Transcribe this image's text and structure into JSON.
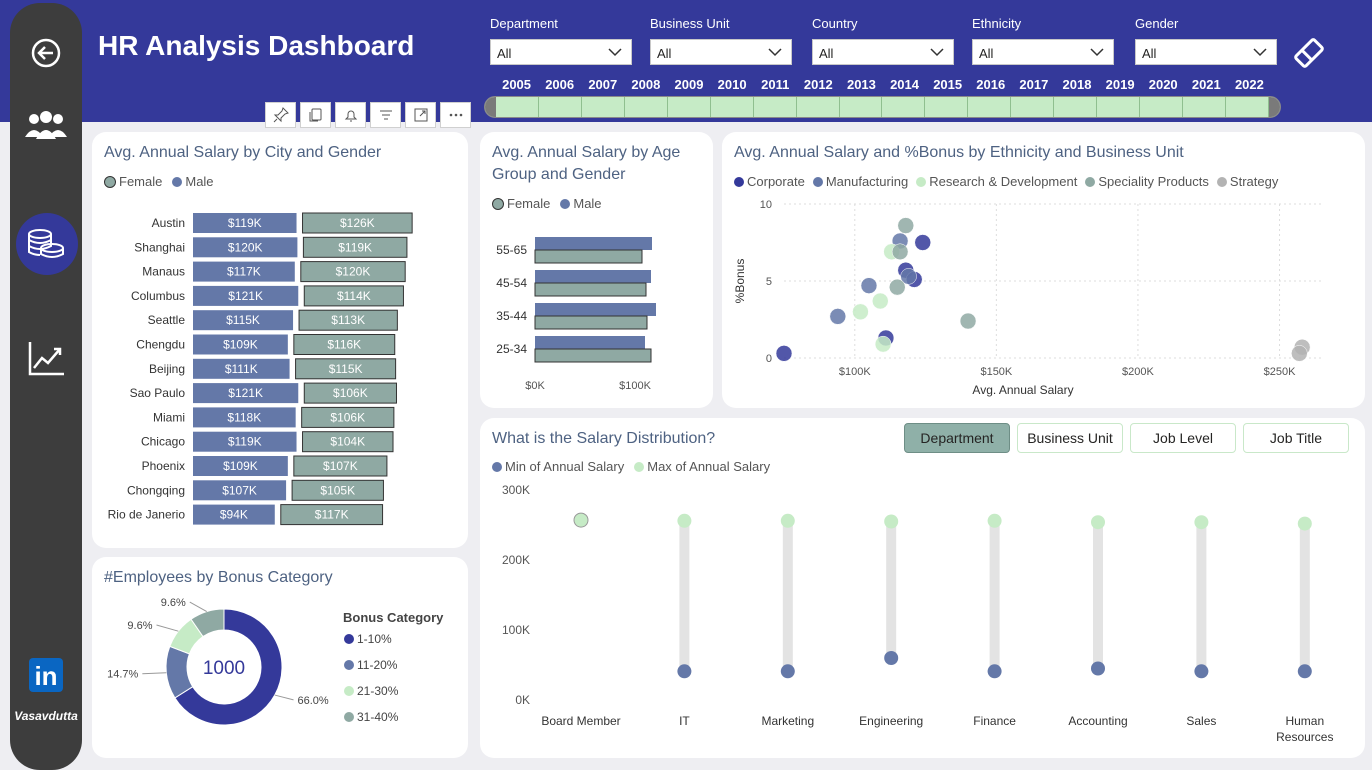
{
  "header": {
    "title": "HR Analysis Dashboard"
  },
  "sidebar": {
    "user": "Vasavdutta",
    "linkedin": "in"
  },
  "filters": [
    {
      "label": "Department",
      "value": "All"
    },
    {
      "label": "Business Unit",
      "value": "All"
    },
    {
      "label": "Country",
      "value": "All"
    },
    {
      "label": "Ethnicity",
      "value": "All"
    },
    {
      "label": "Gender",
      "value": "All"
    }
  ],
  "years": [
    "2005",
    "2006",
    "2007",
    "2008",
    "2009",
    "2010",
    "2011",
    "2012",
    "2013",
    "2014",
    "2015",
    "2016",
    "2017",
    "2018",
    "2019",
    "2020",
    "2021",
    "2022"
  ],
  "colors": {
    "female": "#8fa9a3",
    "male": "#6478a8",
    "corporate": "#34399a",
    "manufacturing": "#6478a8",
    "rnd": "#c6ebc6",
    "speciality": "#8fa9a3",
    "strategy": "#b3b3b3",
    "max": "#c6ebc6",
    "min": "#6478a8"
  },
  "city_chart": {
    "title": "Avg. Annual Salary by City and Gender",
    "legend": [
      "Female",
      "Male"
    ],
    "chart_data": {
      "type": "bar",
      "categories": [
        "Austin",
        "Shanghai",
        "Manaus",
        "Columbus",
        "Seattle",
        "Chengdu",
        "Beijing",
        "Sao Paulo",
        "Miami",
        "Chicago",
        "Phoenix",
        "Chongqing",
        "Rio de Janerio"
      ],
      "series": [
        {
          "name": "Male",
          "values": [
            119,
            120,
            117,
            121,
            115,
            109,
            111,
            121,
            118,
            119,
            109,
            107,
            94
          ],
          "labels": [
            "$119K",
            "$120K",
            "$117K",
            "$121K",
            "$115K",
            "$109K",
            "$111K",
            "$121K",
            "$118K",
            "$119K",
            "$109K",
            "$107K",
            "$94K"
          ]
        },
        {
          "name": "Female",
          "values": [
            126,
            119,
            120,
            114,
            113,
            116,
            115,
            106,
            106,
            104,
            107,
            105,
            117
          ],
          "labels": [
            "$126K",
            "$119K",
            "$120K",
            "$114K",
            "$113K",
            "$116K",
            "$115K",
            "$106K",
            "$106K",
            "$104K",
            "$107K",
            "$105K",
            "$117K"
          ]
        }
      ]
    }
  },
  "age_chart": {
    "title": "Avg. Annual Salary by Age Group and Gender",
    "title_lines": [
      "Avg. Annual Salary by Age",
      "Group and Gender"
    ],
    "legend": [
      "Female",
      "Male"
    ],
    "chart_data": {
      "type": "bar",
      "categories": [
        "55-65",
        "45-54",
        "35-44",
        "25-34"
      ],
      "series": [
        {
          "name": "Male",
          "values": [
            117,
            116,
            121,
            110
          ]
        },
        {
          "name": "Female",
          "values": [
            107,
            111,
            112,
            116
          ]
        }
      ],
      "xticks": [
        "$0K",
        "$100K"
      ],
      "xlim": [
        0,
        125
      ]
    }
  },
  "scatter_chart": {
    "title": "Avg. Annual Salary and %Bonus by Ethnicity and Business Unit",
    "legend": [
      "Corporate",
      "Manufacturing",
      "Research & Development",
      "Speciality Products",
      "Strategy"
    ],
    "chart_data": {
      "type": "scatter",
      "xlabel": "Avg. Annual Salary",
      "ylabel": "%Bonus",
      "xlim": [
        75,
        265
      ],
      "ylim": [
        0,
        10
      ],
      "xticks": [
        "$100K",
        "$150K",
        "$200K",
        "$250K"
      ],
      "yticks": [
        "0",
        "5",
        "10"
      ],
      "series": [
        {
          "name": "Corporate",
          "points": [
            [
              124,
              7.5
            ],
            [
              118,
              5.7
            ],
            [
              121,
              5.1
            ],
            [
              111,
              1.3
            ],
            [
              75,
              0.3
            ]
          ]
        },
        {
          "name": "Manufacturing",
          "points": [
            [
              116,
              7.6
            ],
            [
              105,
              4.7
            ],
            [
              94,
              2.7
            ],
            [
              119,
              5.3
            ]
          ]
        },
        {
          "name": "Research & Development",
          "points": [
            [
              113,
              6.9
            ],
            [
              109,
              3.7
            ],
            [
              102,
              3.0
            ],
            [
              110,
              0.9
            ]
          ]
        },
        {
          "name": "Speciality Products",
          "points": [
            [
              118,
              8.6
            ],
            [
              116,
              6.9
            ],
            [
              115,
              4.6
            ],
            [
              140,
              2.4
            ]
          ]
        },
        {
          "name": "Strategy",
          "points": [
            [
              258,
              0.7
            ],
            [
              257,
              0.3
            ]
          ]
        }
      ]
    }
  },
  "salary_dist": {
    "title": "What is the Salary Distribution?",
    "buttons": [
      "Department",
      "Business Unit",
      "Job Level",
      "Job Title"
    ],
    "legend": [
      "Min of Annual Salary",
      "Max of Annual Salary"
    ],
    "chart_data": {
      "type": "scatter",
      "categories": [
        "Board Member",
        "IT",
        "Marketing",
        "Engineering",
        "Finance",
        "Accounting",
        "Sales",
        "Human Resources"
      ],
      "category_lines": [
        [
          "Board Member"
        ],
        [
          "IT"
        ],
        [
          "Marketing"
        ],
        [
          "Engineering"
        ],
        [
          "Finance"
        ],
        [
          "Accounting"
        ],
        [
          "Sales"
        ],
        [
          "Human",
          "Resources"
        ]
      ],
      "series": [
        {
          "name": "Min of Annual Salary",
          "values": [
            257,
            41,
            41,
            60,
            41,
            45,
            41,
            41
          ]
        },
        {
          "name": "Max of Annual Salary",
          "values": [
            257,
            256,
            256,
            255,
            256,
            254,
            254,
            252
          ]
        }
      ],
      "ylim": [
        0,
        300
      ],
      "yticks": [
        "0K",
        "100K",
        "200K",
        "300K"
      ]
    }
  },
  "bonus_chart": {
    "title": "#Employees by Bonus Category",
    "center": "1000",
    "legend_title": "Bonus Category",
    "chart_data": {
      "type": "pie",
      "categories": [
        "1-10%",
        "11-20%",
        "21-30%",
        "31-40%"
      ],
      "values": [
        66.0,
        14.7,
        9.6,
        9.6
      ],
      "labels": [
        "66.0%",
        "14.7%",
        "9.6%",
        "9.6%"
      ]
    }
  }
}
